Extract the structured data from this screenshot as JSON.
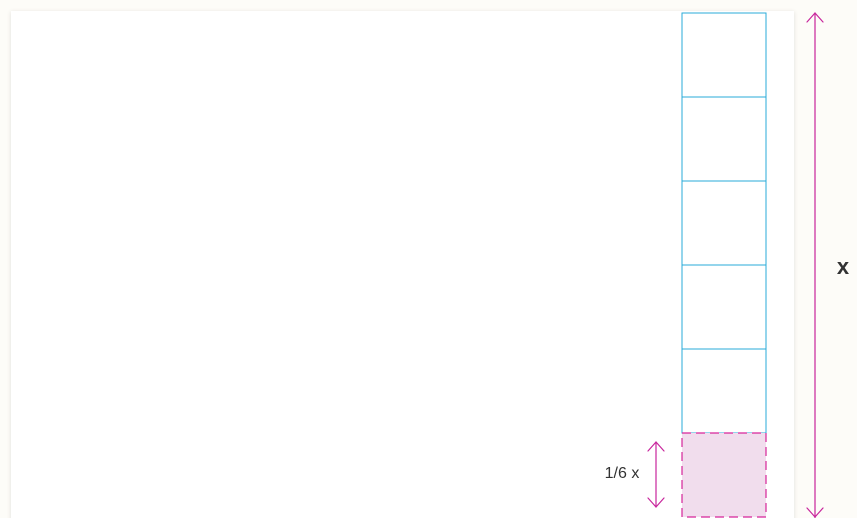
{
  "diagram": {
    "total_label": "x",
    "piece_label": "1/6 x",
    "segment_count": 6,
    "highlighted_segment_index": 5,
    "colors": {
      "canvas": "#ffffff",
      "page_background": "#fdfcf8",
      "cell_border": "#29abd9",
      "highlight_fill": "#f1dded",
      "highlight_border": "#d6259a",
      "arrow": "#c8259c",
      "text": "#333333"
    }
  }
}
